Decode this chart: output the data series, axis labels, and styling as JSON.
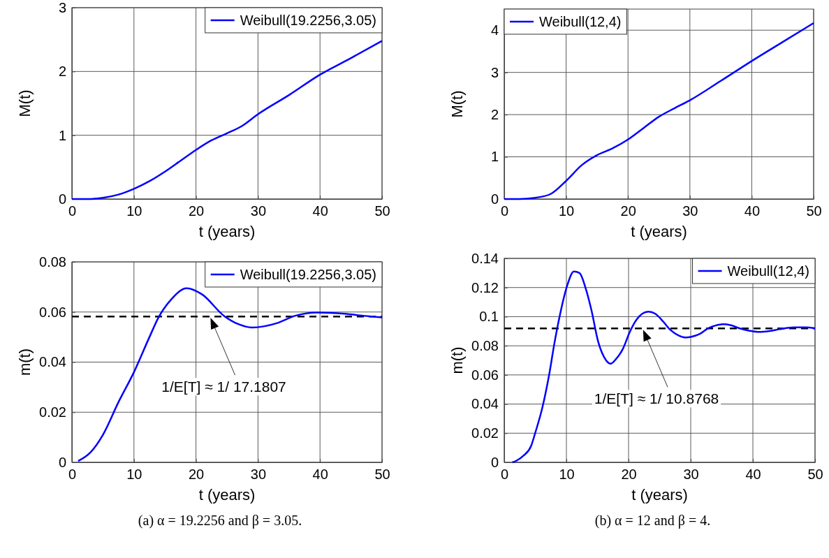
{
  "chart_data": [
    {
      "type": "line",
      "ylabel": "M(t)",
      "xlabel": "t (years)",
      "xlim": [
        0,
        50
      ],
      "xticks": [
        0,
        10,
        20,
        30,
        40,
        50
      ],
      "ylim": [
        0,
        3
      ],
      "yticks": [
        0,
        1,
        2,
        3
      ],
      "grid": true,
      "legend": "top right",
      "line_style": "solid",
      "marker": "none",
      "series": [
        {
          "name": "Weibull(19.2256,3.05)",
          "color": "#0000ff",
          "x": [
            0,
            2.5,
            5,
            7.5,
            10,
            12.5,
            15,
            17.5,
            20,
            22.5,
            25,
            27.5,
            30,
            35,
            40,
            45,
            50
          ],
          "values": [
            0,
            0,
            0.02,
            0.07,
            0.16,
            0.28,
            0.43,
            0.6,
            0.77,
            0.92,
            1.03,
            1.15,
            1.33,
            1.63,
            1.95,
            2.21,
            2.48
          ]
        }
      ]
    },
    {
      "type": "line",
      "ylabel": "M(t)",
      "xlabel": "t (years)",
      "xlim": [
        0,
        50
      ],
      "xticks": [
        0,
        10,
        20,
        30,
        40,
        50
      ],
      "ylim": [
        0,
        4.5
      ],
      "yticks": [
        0,
        1,
        2,
        3,
        4
      ],
      "grid": true,
      "legend": "top left",
      "line_style": "solid",
      "marker": "none",
      "series": [
        {
          "name": "Weibull(12,4)",
          "color": "#0000ff",
          "x": [
            0,
            2.5,
            5,
            7.5,
            10,
            12.5,
            15,
            17.5,
            20,
            22.5,
            25,
            27.5,
            30,
            35,
            40,
            45,
            50
          ],
          "values": [
            0,
            0,
            0.03,
            0.12,
            0.43,
            0.8,
            1.04,
            1.2,
            1.41,
            1.68,
            1.95,
            2.15,
            2.34,
            2.8,
            3.27,
            3.72,
            4.17
          ]
        }
      ]
    },
    {
      "type": "line",
      "ylabel": "m(t)",
      "xlabel": "t (years)",
      "xlim": [
        0,
        50
      ],
      "xticks": [
        0,
        10,
        20,
        30,
        40,
        50
      ],
      "ylim": [
        0,
        0.08
      ],
      "yticks": [
        0,
        0.02,
        0.04,
        0.06,
        0.08
      ],
      "grid": true,
      "legend": "top right",
      "line_style": "solid",
      "marker": "none",
      "series": [
        {
          "name": "Weibull(19.2256,3.05)",
          "color": "#0000ff",
          "x": [
            1,
            3,
            5,
            7.5,
            10,
            12.5,
            14,
            16,
            18.5,
            21,
            24.5,
            27,
            29,
            33,
            36,
            39.5,
            44,
            47,
            50
          ],
          "values": [
            0.0005,
            0.004,
            0.011,
            0.024,
            0.036,
            0.05,
            0.058,
            0.065,
            0.0695,
            0.067,
            0.0585,
            0.055,
            0.0538,
            0.0555,
            0.0585,
            0.0598,
            0.0593,
            0.0585,
            0.0578
          ]
        }
      ],
      "ref_lines": [
        {
          "axis": "y",
          "value": 0.0582,
          "color": "#000000",
          "line_style": "dashed"
        }
      ],
      "annotations": [
        "1/E[T] ≈ 1/ 17.1807",
        "(a) α = 19.2256 and β = 3.05."
      ]
    },
    {
      "type": "line",
      "ylabel": "m(t)",
      "xlabel": "t (years)",
      "xlim": [
        0,
        50
      ],
      "xticks": [
        0,
        10,
        20,
        30,
        40,
        50
      ],
      "ylim": [
        0,
        0.14
      ],
      "yticks": [
        0,
        0.02,
        0.04,
        0.06,
        0.08,
        0.1,
        0.12,
        0.14
      ],
      "grid": true,
      "legend": "top right",
      "line_style": "solid",
      "marker": "none",
      "series": [
        {
          "name": "Weibull(12,4)",
          "color": "#0000ff",
          "x": [
            1.3,
            2,
            3.1,
            4.3,
            5,
            6.1,
            7.3,
            8,
            9,
            10.1,
            11.2,
            12.1,
            13.1,
            14,
            15.1,
            16.1,
            17.1,
            18,
            19.1,
            20.2,
            21.3,
            22.2,
            23.2,
            24.3,
            25.6,
            26.7,
            28.1,
            29.2,
            30.1,
            31.4,
            32.7,
            34,
            35.2,
            36.5,
            38,
            39.5,
            41,
            42.5,
            44.3,
            46.6,
            48.5,
            50
          ],
          "values": [
            0,
            0.0012,
            0.0046,
            0.011,
            0.0204,
            0.037,
            0.062,
            0.08,
            0.102,
            0.121,
            0.131,
            0.13,
            0.1195,
            0.105,
            0.083,
            0.072,
            0.0677,
            0.071,
            0.078,
            0.0895,
            0.098,
            0.102,
            0.1034,
            0.102,
            0.0965,
            0.091,
            0.087,
            0.0857,
            0.0862,
            0.088,
            0.0918,
            0.0939,
            0.0948,
            0.0941,
            0.0918,
            0.0903,
            0.0895,
            0.09,
            0.0914,
            0.0926,
            0.0926,
            0.092
          ]
        }
      ],
      "ref_lines": [
        {
          "axis": "y",
          "value": 0.0919,
          "color": "#000000",
          "line_style": "dashed"
        }
      ],
      "annotations": [
        "1/E[T] ≈ 1/ 10.8768",
        "(b) α = 12 and β = 4."
      ]
    }
  ]
}
